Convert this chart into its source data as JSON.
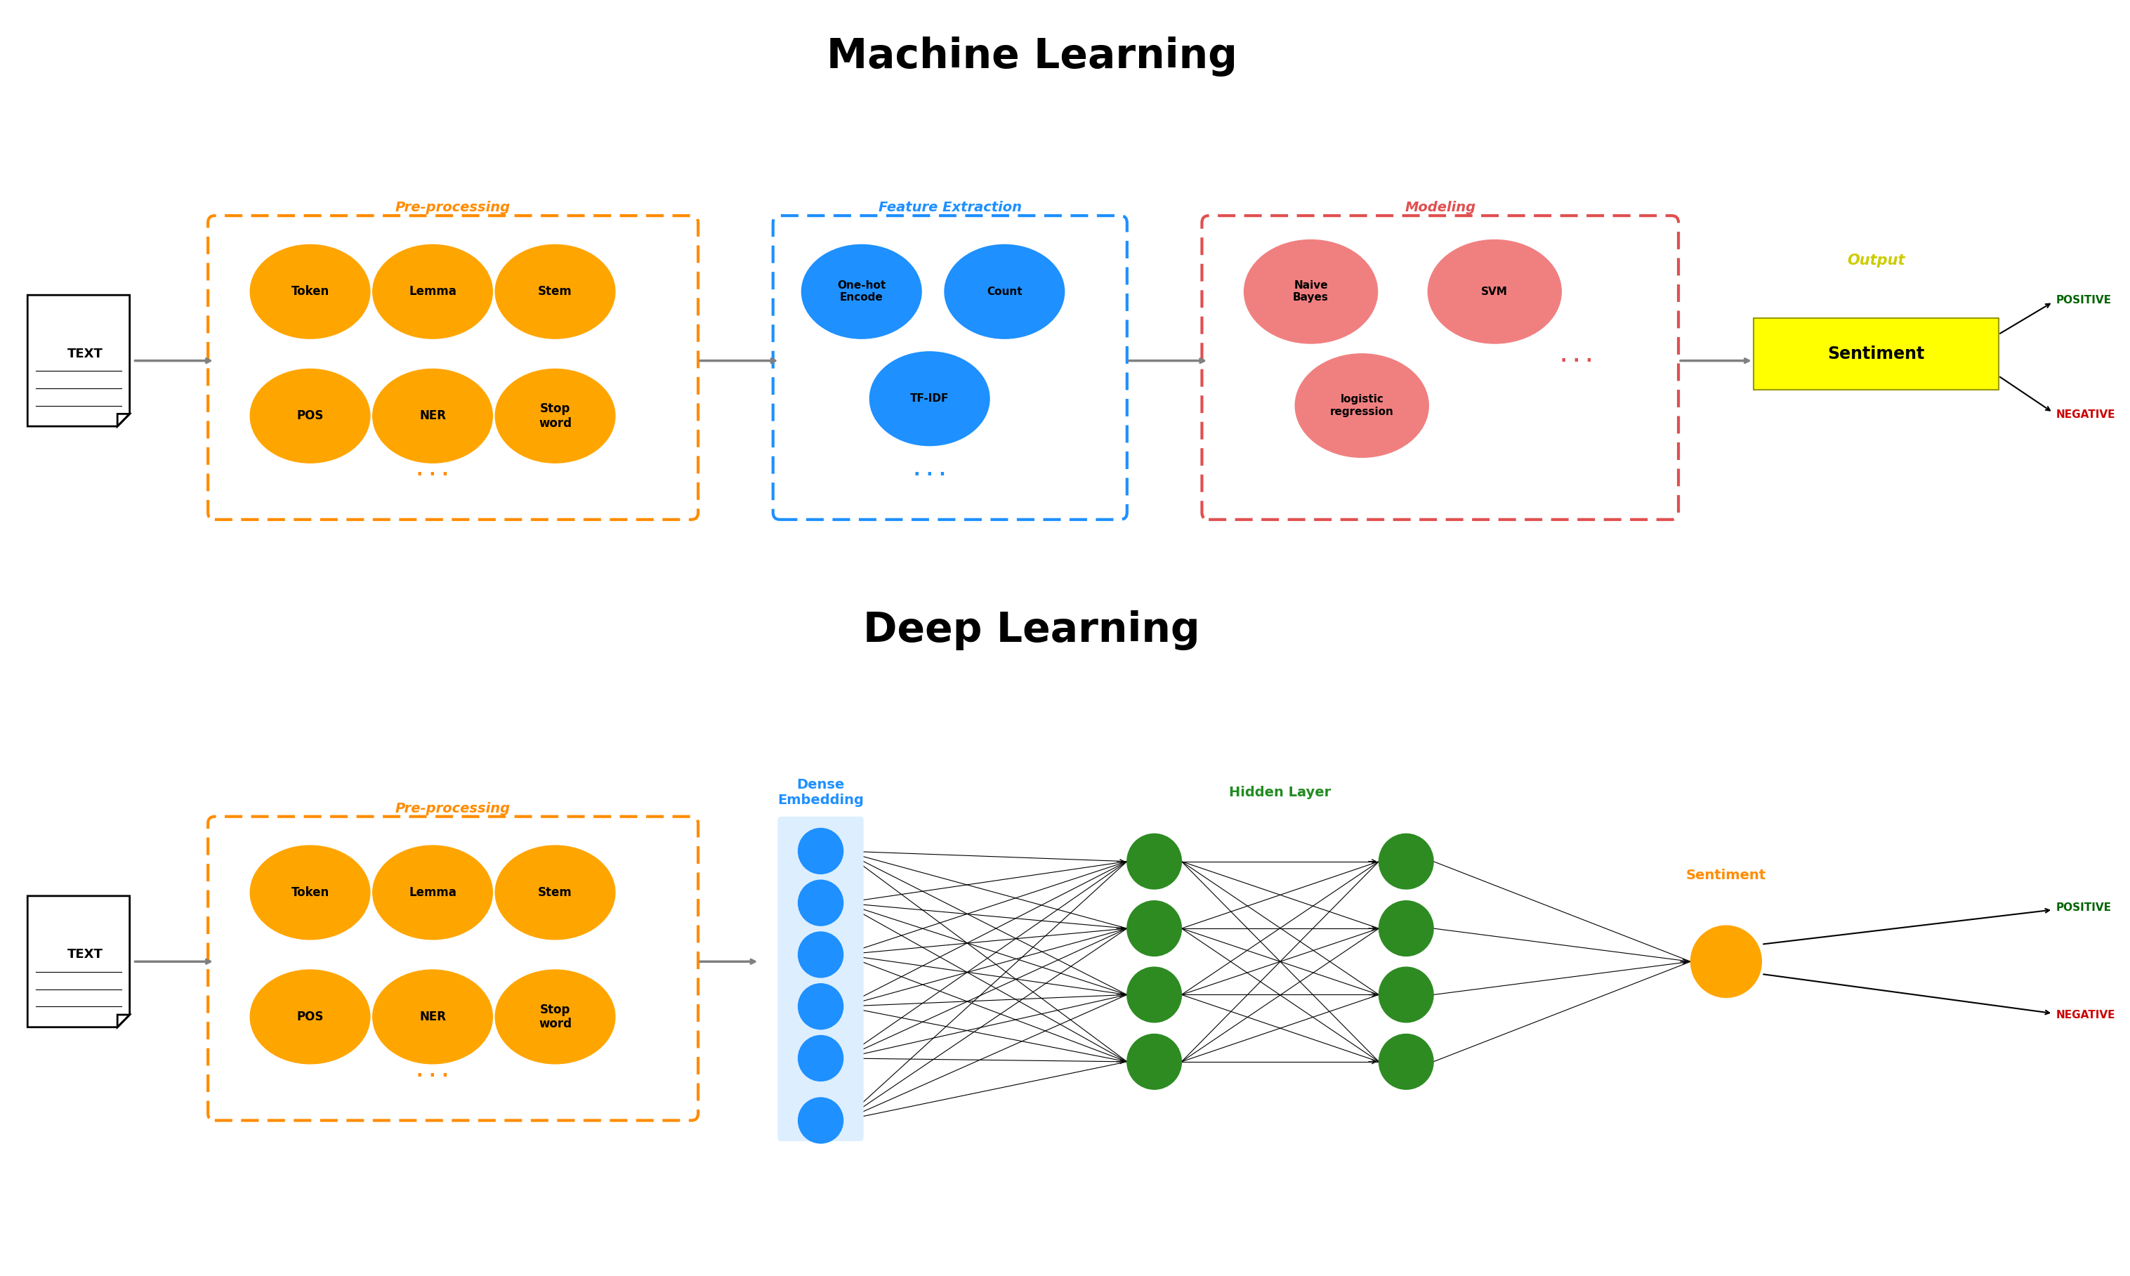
{
  "title_ml": "Machine Learning",
  "title_dl": "Deep Learning",
  "orange": "#FFA500",
  "blue": "#1E90FF",
  "green": "#228B22",
  "yellow": "#FFFF00",
  "dark_orange": "#FF8C00",
  "dark_green": "#006400",
  "dark_red": "#CC0000",
  "ml_preproc_label": "Pre-processing",
  "ml_feature_label": "Feature Extraction",
  "ml_model_label": "Modeling",
  "ml_output_label": "Output",
  "ml_preproc_nodes": [
    "Token",
    "Lemma",
    "Stem",
    "POS",
    "NER",
    "Stop\nword"
  ],
  "ml_feature_nodes": [
    "One-hot\nEncode",
    "Count",
    "TF-IDF"
  ],
  "ml_model_nodes": [
    "Naive\nBayes",
    "SVM",
    "logistic\nregression"
  ],
  "ml_sentiment_label": "Sentiment",
  "dl_preproc_label": "Pre-processing",
  "dl_dense_label": "Dense\nEmbedding",
  "dl_hidden_label": "Hidden Layer",
  "dl_sentiment_label": "Sentiment",
  "dl_preproc_nodes": [
    "Token",
    "Lemma",
    "Stem",
    "POS",
    "NER",
    "Stop\nword"
  ],
  "positive_label": "POSITIVE",
  "negative_label": "NEGATIVE"
}
